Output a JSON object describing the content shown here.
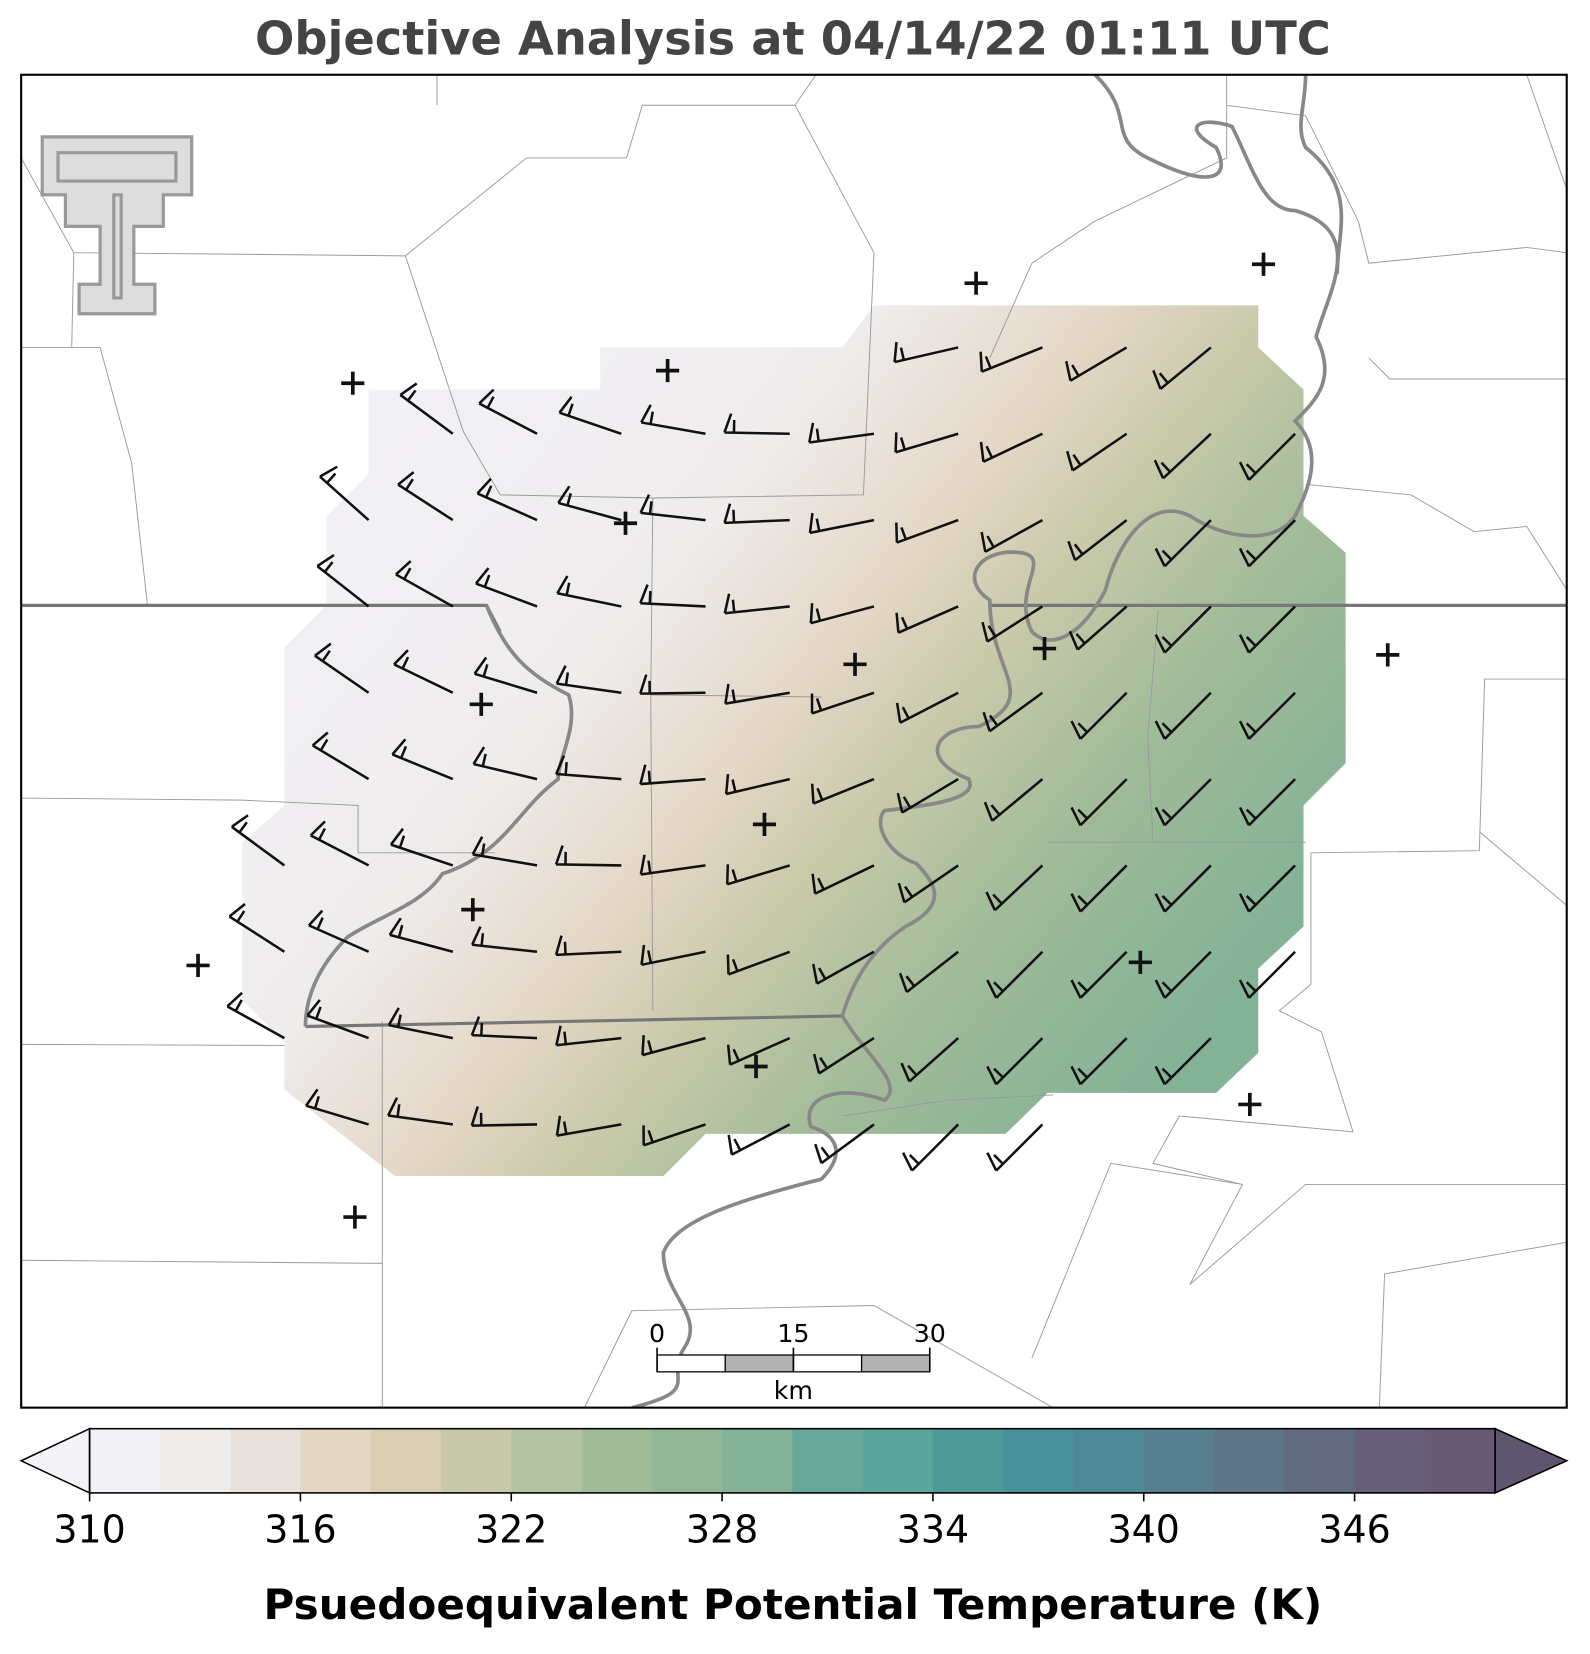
{
  "title": "Objective Analysis at 04/14/22 01:11 UTC",
  "colorbar": {
    "label": "Psuedoequivalent Potential Temperature (K)",
    "lim": [
      310,
      350
    ],
    "ticks": [
      310,
      316,
      322,
      328,
      334,
      340,
      346
    ],
    "colors": [
      "#f2f1f6",
      "#efecec",
      "#e8e1dc",
      "#e3d6c4",
      "#d8cfb2",
      "#c7c9a9",
      "#b3c4a3",
      "#a1bb99",
      "#93b799",
      "#84b297",
      "#67a898",
      "#5ba59a",
      "#4e9a99",
      "#48919a",
      "#4b8996",
      "#577f90",
      "#5e7588",
      "#636b80",
      "#675f78",
      "#675a72"
    ],
    "under_color": "#f4f3f8",
    "over_color": "#5e566e"
  },
  "scale_bar": {
    "ticks": [
      0,
      15,
      30
    ],
    "unit": "km"
  }
}
